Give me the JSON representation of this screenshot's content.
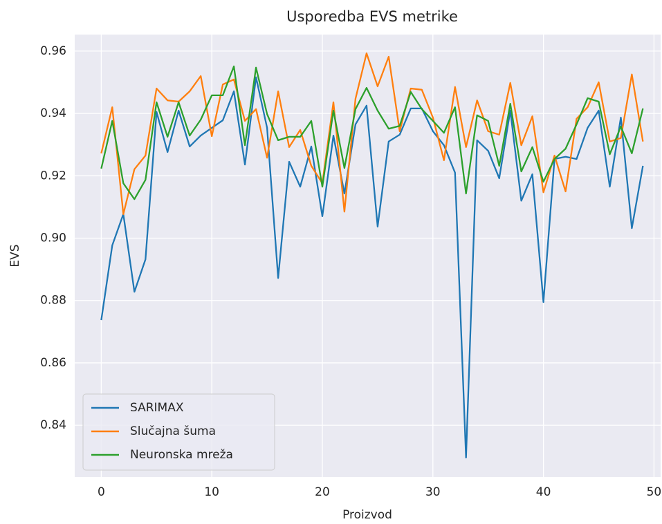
{
  "chart_data": {
    "type": "line",
    "title": "Usporedba EVS metrike",
    "x_label": "Proizvod",
    "y_label": "EVS",
    "x": [
      0,
      1,
      2,
      3,
      4,
      5,
      6,
      7,
      8,
      9,
      10,
      11,
      12,
      13,
      14,
      15,
      16,
      17,
      18,
      19,
      20,
      21,
      22,
      23,
      24,
      25,
      26,
      27,
      28,
      29,
      30,
      31,
      32,
      33,
      34,
      35,
      36,
      37,
      38,
      39,
      40,
      41,
      42,
      43,
      44,
      45,
      46,
      47,
      48,
      49
    ],
    "series": [
      {
        "name": "SARIMAX",
        "color": "#1f77b4",
        "values": [
          0.8737,
          0.8977,
          0.9077,
          0.8828,
          0.8932,
          0.9405,
          0.9276,
          0.9409,
          0.9294,
          0.9329,
          0.9354,
          0.9378,
          0.9471,
          0.9236,
          0.9516,
          0.9354,
          0.8872,
          0.9245,
          0.9165,
          0.9294,
          0.907,
          0.9329,
          0.9143,
          0.9365,
          0.9425,
          0.9037,
          0.931,
          0.9332,
          0.9416,
          0.9416,
          0.9343,
          0.9298,
          0.921,
          0.8296,
          0.9314,
          0.928,
          0.9192,
          0.9409,
          0.912,
          0.9205,
          0.8795,
          0.9254,
          0.9261,
          0.9254,
          0.9354,
          0.9409,
          0.9165,
          0.9387,
          0.9032,
          0.9232
        ]
      },
      {
        "name": "Slučajna šuma",
        "color": "#ff7f0e",
        "values": [
          0.9272,
          0.942,
          0.9077,
          0.9221,
          0.9265,
          0.948,
          0.9442,
          0.9438,
          0.9471,
          0.952,
          0.9327,
          0.9493,
          0.9509,
          0.9376,
          0.9414,
          0.9258,
          0.9471,
          0.9292,
          0.9347,
          0.9232,
          0.9176,
          0.9436,
          0.9085,
          0.9447,
          0.9593,
          0.9487,
          0.9582,
          0.9343,
          0.948,
          0.9476,
          0.9387,
          0.925,
          0.9485,
          0.9292,
          0.9442,
          0.9343,
          0.9332,
          0.9498,
          0.9298,
          0.9391,
          0.9147,
          0.9265,
          0.915,
          0.9383,
          0.942,
          0.95,
          0.931,
          0.9321,
          0.9525,
          0.931
        ]
      },
      {
        "name": "Neuronska mreža",
        "color": "#2ca02c",
        "values": [
          0.9223,
          0.9376,
          0.9176,
          0.9125,
          0.9187,
          0.9436,
          0.9325,
          0.9436,
          0.9329,
          0.938,
          0.9458,
          0.9458,
          0.9551,
          0.9298,
          0.9547,
          0.9398,
          0.9314,
          0.9325,
          0.9325,
          0.9376,
          0.9165,
          0.9409,
          0.9225,
          0.9414,
          0.9482,
          0.9409,
          0.9351,
          0.936,
          0.9469,
          0.9414,
          0.9376,
          0.9338,
          0.942,
          0.9143,
          0.9394,
          0.9376,
          0.9232,
          0.9431,
          0.9214,
          0.9292,
          0.9181,
          0.9254,
          0.9287,
          0.9365,
          0.9449,
          0.9438,
          0.9269,
          0.9358,
          0.9272,
          0.9416
        ]
      }
    ],
    "xlim": [
      -2.4,
      50.6
    ],
    "xticks": [
      0,
      10,
      20,
      30,
      40,
      50
    ],
    "ylim": [
      0.8234,
      0.9653
    ],
    "yticks": [
      0.84,
      0.86,
      0.88,
      {
        "value": 0.9,
        "label": "0.90"
      },
      0.92,
      0.94,
      0.96
    ],
    "grid": true,
    "legend": "lower left"
  }
}
